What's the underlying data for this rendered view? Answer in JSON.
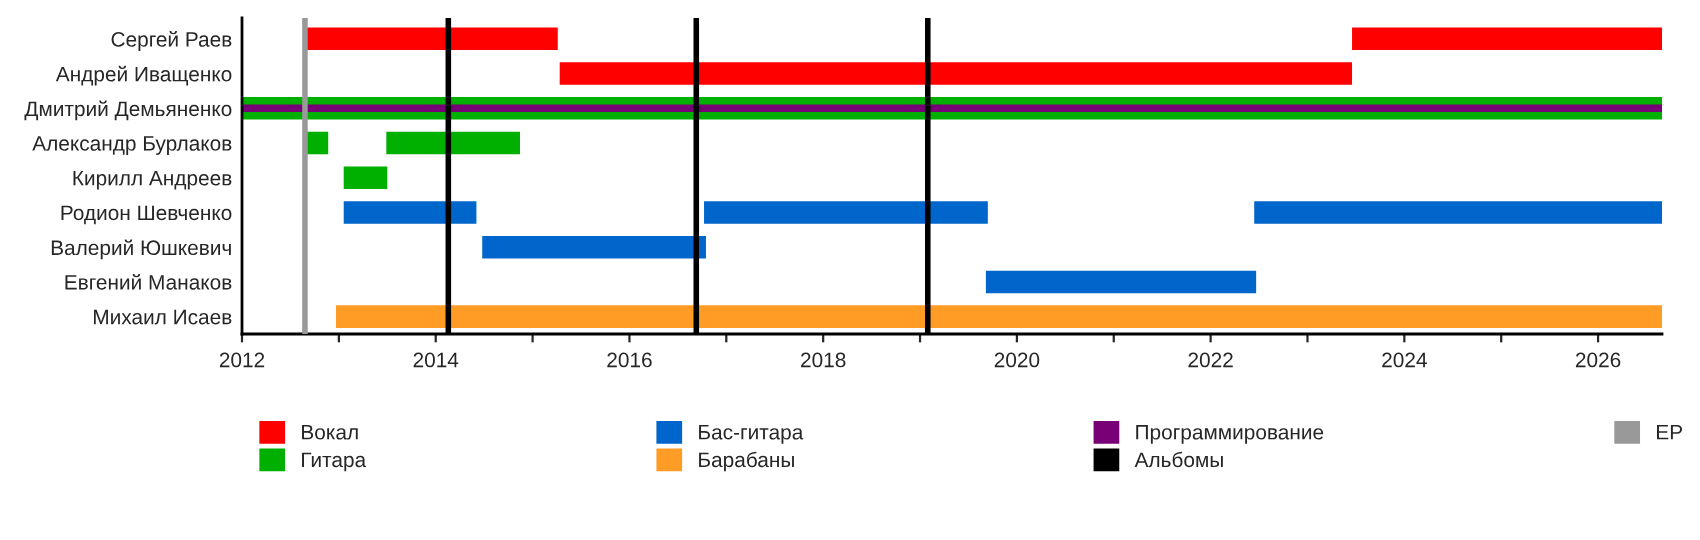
{
  "chart_data": {
    "type": "bar",
    "orientation": "horizontal",
    "categories": [
      "Сергей Раев",
      "Андрей Иващенко",
      "Дмитрий Демьяненко",
      "Александр Бурлаков",
      "Кирилл Андреев",
      "Родион Шевченко",
      "Валерий Юшкевич",
      "Евгений Манаков",
      "Михаил Исаев"
    ],
    "series": [
      {
        "name": "Вокал",
        "color": "#ff0000",
        "base": [
          2012.66,
          2015.28,
          null,
          null,
          null,
          null,
          null,
          null,
          null
        ],
        "values": [
          2.6,
          8.18,
          null,
          null,
          null,
          null,
          null,
          null,
          null
        ]
      },
      {
        "color": "#ff0000",
        "base": [
          2023.46,
          null,
          null,
          null,
          null,
          null,
          null,
          null,
          null
        ],
        "values": [
          3.2,
          null,
          null,
          null,
          null,
          null,
          null,
          null,
          null
        ]
      },
      {
        "name": "Гитара",
        "color": "#00b000",
        "base": [
          null,
          null,
          2012.0,
          2012.66,
          2013.05,
          null,
          null,
          null,
          null
        ],
        "values": [
          null,
          null,
          14.66,
          0.23,
          0.45,
          null,
          null,
          null,
          null
        ]
      },
      {
        "color": "#00b000",
        "base": [
          null,
          null,
          null,
          2013.49,
          null,
          null,
          null,
          null,
          null
        ],
        "values": [
          null,
          null,
          null,
          1.38,
          null,
          null,
          null,
          null,
          null
        ]
      },
      {
        "name": "Бас-гитара",
        "color": "#0066cc",
        "base": [
          null,
          null,
          null,
          null,
          null,
          2013.05,
          2014.48,
          2019.68,
          null
        ],
        "values": [
          null,
          null,
          null,
          null,
          null,
          1.37,
          2.31,
          2.79,
          null
        ]
      },
      {
        "color": "#0066cc",
        "base": [
          null,
          null,
          null,
          null,
          null,
          2016.77,
          null,
          null,
          null
        ],
        "values": [
          null,
          null,
          null,
          null,
          null,
          2.93,
          null,
          null,
          null
        ]
      },
      {
        "color": "#0066cc",
        "base": [
          null,
          null,
          null,
          null,
          null,
          2022.45,
          null,
          null,
          null
        ],
        "values": [
          null,
          null,
          null,
          null,
          null,
          4.21,
          null,
          null,
          null
        ]
      },
      {
        "name": "Барабаны",
        "color": "#ff9c26",
        "base": [
          null,
          null,
          null,
          null,
          null,
          null,
          null,
          null,
          2012.97
        ],
        "values": [
          null,
          null,
          null,
          null,
          null,
          null,
          null,
          null,
          13.69
        ]
      },
      {
        "name": "Программирование",
        "color": "#770077",
        "base": [
          null,
          null,
          2012.0,
          null,
          null,
          null,
          null,
          null,
          null
        ],
        "values": [
          null,
          null,
          14.66,
          null,
          null,
          null,
          null,
          null,
          null
        ]
      }
    ],
    "ref_lines": [
      {
        "axis": "x",
        "value": 2014.13,
        "label": "Альбомы",
        "color": "#000000"
      },
      {
        "axis": "x",
        "value": 2016.69,
        "label": null,
        "color": "#000000"
      },
      {
        "axis": "x",
        "value": 2019.08,
        "label": null,
        "color": "#000000"
      },
      {
        "axis": "x",
        "value": 2012.65,
        "label": "EP",
        "color": "#999999"
      }
    ],
    "xlim": [
      2012,
      2026.66
    ],
    "xticks": [
      2012,
      {
        "value": 2013,
        "label": null
      },
      2014,
      {
        "value": 2015,
        "label": null
      },
      2016,
      {
        "value": 2017,
        "label": null
      },
      2018,
      {
        "value": 2019,
        "label": null
      },
      2020,
      {
        "value": 2021,
        "label": null
      },
      2022,
      {
        "value": 2023,
        "label": null
      },
      2024,
      {
        "value": 2025,
        "label": null
      },
      2026
    ],
    "grid": false,
    "legend": "bottom"
  }
}
